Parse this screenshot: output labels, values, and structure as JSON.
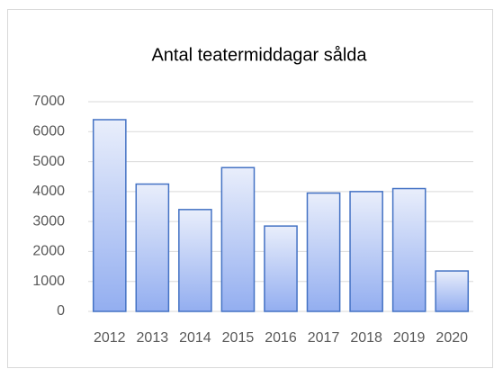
{
  "chart_data": {
    "type": "bar",
    "title": "Antal teatermiddagar sålda",
    "categories": [
      "2012",
      "2013",
      "2014",
      "2015",
      "2016",
      "2017",
      "2018",
      "2019",
      "2020"
    ],
    "values": [
      6400,
      4250,
      3400,
      4800,
      2850,
      3950,
      4000,
      4100,
      1350
    ],
    "color": "#4472c4",
    "ylim": [
      0,
      7000
    ],
    "yticks": [
      0,
      1000,
      2000,
      3000,
      4000,
      5000,
      6000,
      7000
    ],
    "grid": true
  }
}
